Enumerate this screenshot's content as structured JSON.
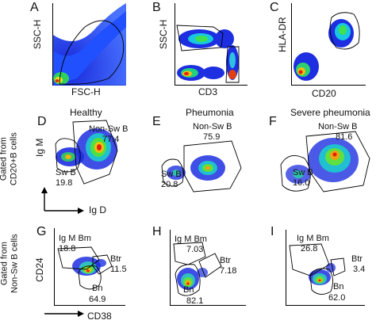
{
  "top_row": {
    "A": {
      "letter": "A",
      "ylabel": "SSC-H",
      "xlabel": "FSC-H"
    },
    "B": {
      "letter": "B",
      "ylabel": "SSC-H",
      "xlabel": "CD3"
    },
    "C": {
      "letter": "C",
      "ylabel": "HLA-DR",
      "xlabel": "CD20"
    }
  },
  "middle_row": {
    "row_label_line1": "Gated from",
    "row_label_line2": "CD20+B cells",
    "ylabel": "Ig M",
    "xlabel": "Ig D",
    "D": {
      "letter": "D",
      "title": "Healthy",
      "nonsw_label": "Non-Sw B",
      "nonsw_value": "77.4",
      "sw_label": "Sw B",
      "sw_value": "19.8"
    },
    "E": {
      "letter": "E",
      "title": "Pheumonia",
      "nonsw_label": "Non-Sw B",
      "nonsw_value": "75.9",
      "sw_label": "Sw B",
      "sw_value": "20.8"
    },
    "F": {
      "letter": "F",
      "title": "Severe pheumonia",
      "nonsw_label": "Non-Sw B",
      "nonsw_value": "81.6",
      "sw_label": "Sw B",
      "sw_value": "16.0"
    }
  },
  "bottom_row": {
    "row_label_line1": "Gated from",
    "row_label_line2": "Non-Sw B  cells",
    "ylabel": "CD24",
    "xlabel": "CD38",
    "G": {
      "letter": "G",
      "igm_label": "Ig M Bm",
      "igm_value": "18.8",
      "btr_label": "Btr",
      "btr_value": "11.5",
      "bn_label": "Bn",
      "bn_value": "64.9"
    },
    "H": {
      "letter": "H",
      "igm_label": "Ig M Bm",
      "igm_value": "7.03",
      "btr_label": "Btr",
      "btr_value": "7.18",
      "bn_label": "Bn",
      "bn_value": "82.1"
    },
    "I": {
      "letter": "I",
      "igm_label": "Ig M Bm",
      "igm_value": "26.8",
      "btr_label": "Btr",
      "btr_value": "3.4",
      "bn_label": "Bn",
      "bn_value": "62.0"
    }
  }
}
